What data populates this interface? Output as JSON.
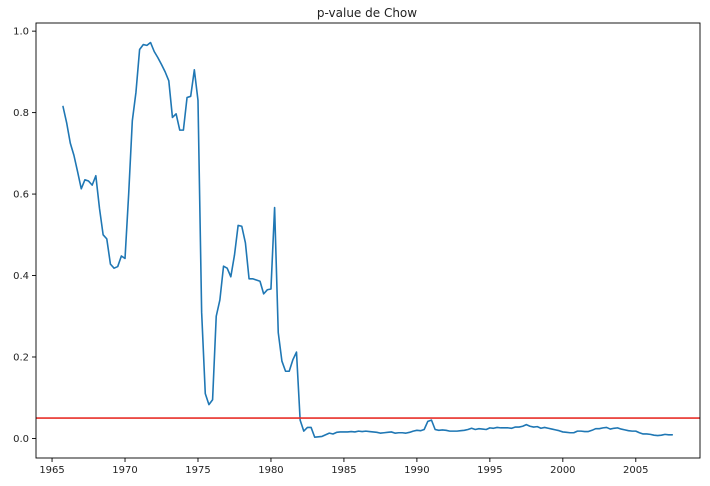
{
  "chart_data": {
    "type": "line",
    "title": "p-value de Chow",
    "xlabel": "",
    "ylabel": "",
    "xlim": [
      1963.9,
      2009.4
    ],
    "ylim": [
      -0.048,
      1.02
    ],
    "xticks": [
      1965,
      1970,
      1975,
      1980,
      1985,
      1990,
      1995,
      2000,
      2005
    ],
    "xtick_labels": [
      "1965",
      "1970",
      "1975",
      "1980",
      "1985",
      "1990",
      "1995",
      "2000",
      "2005"
    ],
    "yticks": [
      0.0,
      0.2,
      0.4,
      0.6,
      0.8,
      1.0
    ],
    "ytick_labels": [
      "0.0",
      "0.2",
      "0.4",
      "0.6",
      "0.8",
      "1.0"
    ],
    "grid": false,
    "reference_line": {
      "y": 0.05,
      "color": "#e8302a"
    },
    "series": [
      {
        "color": "#1f77b4",
        "x": [
          1965.75,
          1966.0,
          1966.25,
          1966.5,
          1966.75,
          1967.0,
          1967.25,
          1967.5,
          1967.75,
          1968.0,
          1968.25,
          1968.5,
          1968.75,
          1969.0,
          1969.25,
          1969.5,
          1969.75,
          1970.0,
          1970.25,
          1970.5,
          1970.75,
          1971.0,
          1971.25,
          1971.5,
          1971.75,
          1972.0,
          1972.25,
          1972.5,
          1972.75,
          1973.0,
          1973.25,
          1973.5,
          1973.75,
          1974.0,
          1974.25,
          1974.5,
          1974.75,
          1975.0,
          1975.25,
          1975.5,
          1975.75,
          1976.0,
          1976.25,
          1976.5,
          1976.75,
          1977.0,
          1977.25,
          1977.5,
          1977.75,
          1978.0,
          1978.25,
          1978.5,
          1978.75,
          1979.0,
          1979.25,
          1979.5,
          1979.75,
          1980.0,
          1980.25,
          1980.5,
          1980.75,
          1981.0,
          1981.25,
          1981.5,
          1981.75,
          1982.0,
          1982.25,
          1982.5,
          1982.75,
          1983.0,
          1983.25,
          1983.5,
          1983.75,
          1984.0,
          1984.25,
          1984.5,
          1984.75,
          1985.0,
          1985.25,
          1985.5,
          1985.75,
          1986.0,
          1986.25,
          1986.5,
          1986.75,
          1987.0,
          1987.25,
          1987.5,
          1987.75,
          1988.0,
          1988.25,
          1988.5,
          1988.75,
          1989.0,
          1989.25,
          1989.5,
          1989.75,
          1990.0,
          1990.25,
          1990.5,
          1990.75,
          1991.0,
          1991.25,
          1991.5,
          1991.75,
          1992.0,
          1992.25,
          1992.5,
          1992.75,
          1993.0,
          1993.25,
          1993.5,
          1993.75,
          1994.0,
          1994.25,
          1994.5,
          1994.75,
          1995.0,
          1995.25,
          1995.5,
          1995.75,
          1996.0,
          1996.25,
          1996.5,
          1996.75,
          1997.0,
          1997.25,
          1997.5,
          1997.75,
          1998.0,
          1998.25,
          1998.5,
          1998.75,
          1999.0,
          1999.25,
          1999.5,
          1999.75,
          2000.0,
          2000.25,
          2000.5,
          2000.75,
          2001.0,
          2001.25,
          2001.5,
          2001.75,
          2002.0,
          2002.25,
          2002.5,
          2002.75,
          2003.0,
          2003.25,
          2003.5,
          2003.75,
          2004.0,
          2004.25,
          2004.5,
          2004.75,
          2005.0,
          2005.25,
          2005.5,
          2005.75,
          2006.0,
          2006.25,
          2006.5,
          2006.75,
          2007.0,
          2007.25,
          2007.5
        ],
        "y": [
          0.815,
          0.775,
          0.725,
          0.695,
          0.655,
          0.613,
          0.635,
          0.632,
          0.622,
          0.645,
          0.565,
          0.5,
          0.49,
          0.428,
          0.418,
          0.422,
          0.448,
          0.442,
          0.6,
          0.78,
          0.85,
          0.955,
          0.967,
          0.965,
          0.972,
          0.95,
          0.935,
          0.918,
          0.9,
          0.878,
          0.788,
          0.797,
          0.757,
          0.757,
          0.837,
          0.84,
          0.905,
          0.83,
          0.31,
          0.11,
          0.083,
          0.095,
          0.3,
          0.34,
          0.423,
          0.418,
          0.397,
          0.45,
          0.523,
          0.521,
          0.48,
          0.392,
          0.392,
          0.389,
          0.386,
          0.355,
          0.365,
          0.367,
          0.567,
          0.26,
          0.19,
          0.165,
          0.165,
          0.193,
          0.212,
          0.045,
          0.018,
          0.027,
          0.027,
          0.003,
          0.004,
          0.005,
          0.009,
          0.013,
          0.011,
          0.015,
          0.016,
          0.016,
          0.016,
          0.017,
          0.016,
          0.018,
          0.017,
          0.018,
          0.017,
          0.016,
          0.015,
          0.013,
          0.014,
          0.015,
          0.016,
          0.013,
          0.014,
          0.014,
          0.013,
          0.015,
          0.018,
          0.02,
          0.019,
          0.022,
          0.042,
          0.045,
          0.022,
          0.02,
          0.021,
          0.02,
          0.018,
          0.018,
          0.018,
          0.019,
          0.02,
          0.022,
          0.025,
          0.022,
          0.024,
          0.023,
          0.022,
          0.026,
          0.025,
          0.027,
          0.026,
          0.026,
          0.026,
          0.025,
          0.028,
          0.028,
          0.03,
          0.034,
          0.03,
          0.028,
          0.029,
          0.025,
          0.027,
          0.025,
          0.023,
          0.021,
          0.019,
          0.016,
          0.015,
          0.014,
          0.014,
          0.018,
          0.018,
          0.017,
          0.017,
          0.02,
          0.024,
          0.024,
          0.026,
          0.027,
          0.023,
          0.025,
          0.026,
          0.023,
          0.021,
          0.019,
          0.018,
          0.018,
          0.014,
          0.011,
          0.011,
          0.01,
          0.008,
          0.007,
          0.008,
          0.01,
          0.009,
          0.009
        ]
      }
    ]
  }
}
